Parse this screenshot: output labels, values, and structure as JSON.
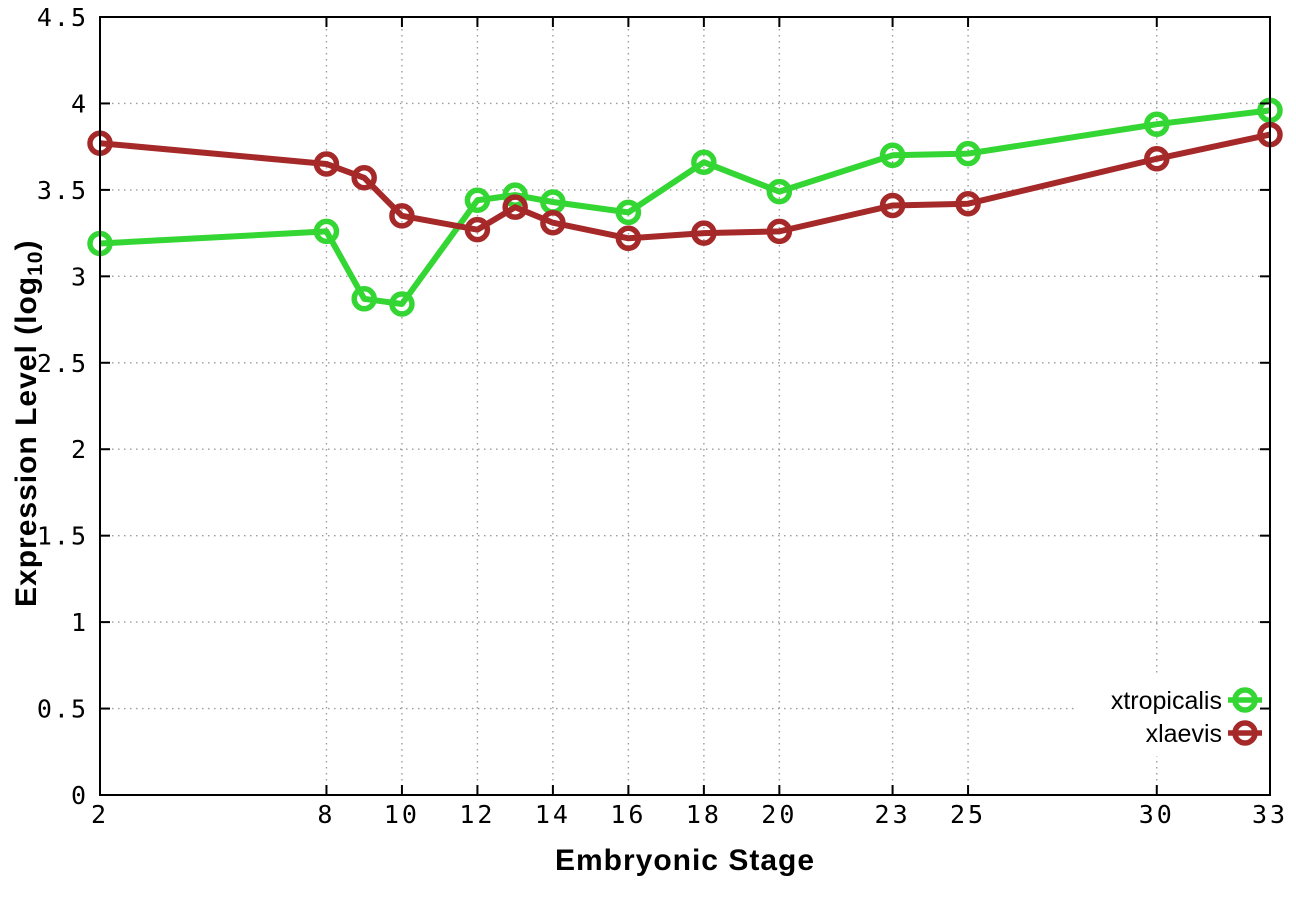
{
  "figure": {
    "background": "#ffffff",
    "text_color": "#000000",
    "grid_color": "#9b9b9b",
    "border_color": "#000000"
  },
  "axes": {
    "y": {
      "label_main": "Expression Level (log",
      "label_sub": "10",
      "label_close": ")"
    },
    "x": {
      "label": "Embryonic Stage"
    }
  },
  "legend": {
    "entries": [
      "xtropicalis",
      "xlaevis"
    ],
    "position": "bottom-right"
  },
  "chart_data": {
    "type": "line",
    "title": "",
    "xlabel": "Embryonic Stage",
    "ylabel": "Expression Level (log10)",
    "x": [
      2,
      8,
      9,
      10,
      12,
      13,
      14,
      16,
      18,
      20,
      23,
      25,
      30,
      33
    ],
    "series": [
      {
        "name": "xtropicalis",
        "color": "#33d633",
        "values": [
          3.19,
          3.26,
          2.87,
          2.84,
          3.44,
          3.47,
          3.43,
          3.37,
          3.66,
          3.49,
          3.7,
          3.71,
          3.88,
          3.96
        ]
      },
      {
        "name": "xlaevis",
        "color": "#a62929",
        "values": [
          3.77,
          3.65,
          3.57,
          3.35,
          3.27,
          3.4,
          3.31,
          3.22,
          3.25,
          3.26,
          3.41,
          3.42,
          3.68,
          3.82
        ]
      }
    ],
    "xlim": [
      2,
      33
    ],
    "ylim": [
      0,
      4.5
    ],
    "x_ticks": [
      2,
      8,
      10,
      12,
      14,
      16,
      18,
      20,
      23,
      25,
      30,
      33
    ],
    "y_ticks": [
      0,
      0.5,
      1,
      1.5,
      2,
      2.5,
      3,
      3.5,
      4,
      4.5
    ],
    "grid": true,
    "grid_style": "dotted",
    "marker": "open-circle",
    "legend_position": "bottom-right"
  }
}
